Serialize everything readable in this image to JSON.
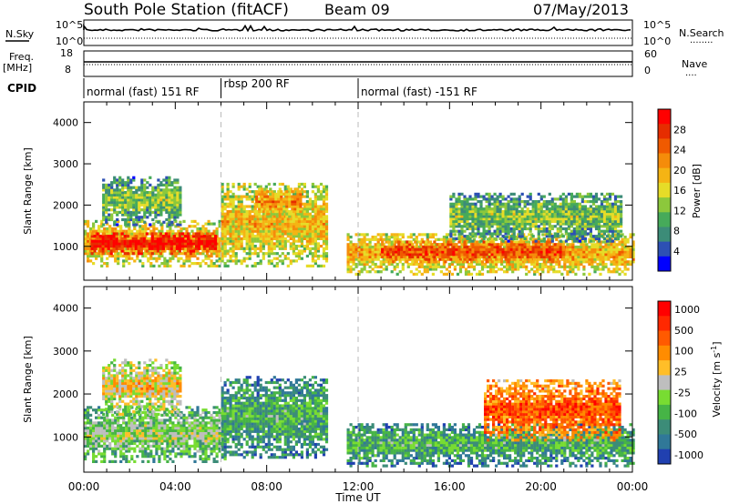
{
  "header": {
    "station": "South Pole Station (fitACF)",
    "beam": "Beam 09",
    "date": "07/May/2013"
  },
  "side_labels": {
    "nsky": "N.Sky",
    "nsearch": "N.Search",
    "freq": "Freq.",
    "freq_unit": "[MHz]",
    "nave": "Nave",
    "cpid": "CPID",
    "legend_dots_a": "········",
    "legend_dots_b": "····"
  },
  "noise_axis": {
    "left_ticks": [
      "10^5",
      "10^0"
    ],
    "right_ticks": [
      "10^5",
      "10^0"
    ]
  },
  "freq_axis": {
    "left_ticks": [
      "18",
      "8"
    ],
    "right_ticks": [
      "60",
      "0"
    ]
  },
  "cpid_segments": [
    {
      "label": "normal (fast) 151 RF",
      "start_h": 0,
      "end_h": 6
    },
    {
      "label": "rbsp 200 RF",
      "start_h": 6,
      "end_h": 12
    },
    {
      "label": "normal (fast) -151 RF",
      "start_h": 12,
      "end_h": 24
    }
  ],
  "chart_data": [
    {
      "type": "heatmap",
      "title": "",
      "xlabel": "Time UT",
      "ylabel": "Slant Range [km]",
      "xlim": [
        0,
        24
      ],
      "ylim": [
        180,
        4500
      ],
      "x_ticks": [
        "00:00",
        "04:00",
        "08:00",
        "12:00",
        "16:00",
        "20:00",
        "00:00"
      ],
      "y_ticks": [
        1000,
        2000,
        3000,
        4000
      ],
      "colorbar": {
        "label": "Power [dB]",
        "ticks": [
          "4",
          "8",
          "12",
          "16",
          "20",
          "24",
          "28"
        ],
        "range": [
          0,
          32
        ],
        "colors": [
          "#0000ff",
          "#2d50b4",
          "#3c8c78",
          "#46aa5a",
          "#8cc83c",
          "#e6dc28",
          "#f5b414",
          "#f58c0a",
          "#f05a00",
          "#e62d00",
          "#ff0000"
        ]
      },
      "series": [
        {
          "name": "",
          "bands": [
            {
              "t0": 0.0,
              "t1": 6.2,
              "r0": 500,
              "r1": 1600,
              "level": 0.55
            },
            {
              "t0": 0.3,
              "t1": 5.8,
              "r0": 800,
              "r1": 1300,
              "level": 0.92
            },
            {
              "t0": 0.8,
              "t1": 4.2,
              "r0": 1500,
              "r1": 2700,
              "level": 0.3
            },
            {
              "t0": 6.0,
              "t1": 10.6,
              "r0": 500,
              "r1": 2500,
              "level": 0.5
            },
            {
              "t0": 7.5,
              "t1": 9.5,
              "r0": 1700,
              "r1": 2400,
              "level": 0.62
            },
            {
              "t0": 11.5,
              "t1": 24.0,
              "r0": 300,
              "r1": 1300,
              "level": 0.55
            },
            {
              "t0": 13.0,
              "t1": 21.0,
              "r0": 600,
              "r1": 1100,
              "level": 0.78
            },
            {
              "t0": 16.0,
              "t1": 23.5,
              "r0": 1100,
              "r1": 2300,
              "level": 0.3
            }
          ]
        }
      ]
    },
    {
      "type": "heatmap",
      "title": "",
      "xlabel": "Time UT",
      "ylabel": "Slant Range [km]",
      "xlim": [
        0,
        24
      ],
      "ylim": [
        180,
        4500
      ],
      "x_ticks": [
        "00:00",
        "04:00",
        "08:00",
        "12:00",
        "16:00",
        "20:00",
        "00:00"
      ],
      "y_ticks": [
        1000,
        2000,
        3000,
        4000
      ],
      "colorbar": {
        "label": "Velocity [m s^-1]",
        "ticks": [
          "1000",
          "500",
          "100",
          "25",
          "-25",
          "-100",
          "-500",
          "-1000"
        ],
        "range": [
          -1000,
          1000
        ],
        "colors": [
          "#2040b0",
          "#307898",
          "#3c8c78",
          "#46b446",
          "#78dc32",
          "#bebebe",
          "#ffbe28",
          "#ff8c00",
          "#ff5a00",
          "#ff2800",
          "#ff0000"
        ]
      },
      "series": [
        {
          "name": "",
          "bands": [
            {
              "t0": 0.0,
              "t1": 6.2,
              "r0": 400,
              "r1": 1700,
              "level": 0.35
            },
            {
              "t0": 0.8,
              "t1": 4.2,
              "r0": 1500,
              "r1": 2800,
              "level": 0.5
            },
            {
              "t0": 6.0,
              "t1": 10.6,
              "r0": 500,
              "r1": 2400,
              "level": 0.22
            },
            {
              "t0": 11.5,
              "t1": 24.0,
              "r0": 300,
              "r1": 1300,
              "level": 0.22
            },
            {
              "t0": 17.5,
              "t1": 23.5,
              "r0": 900,
              "r1": 2300,
              "level": 0.75
            }
          ]
        }
      ]
    }
  ]
}
